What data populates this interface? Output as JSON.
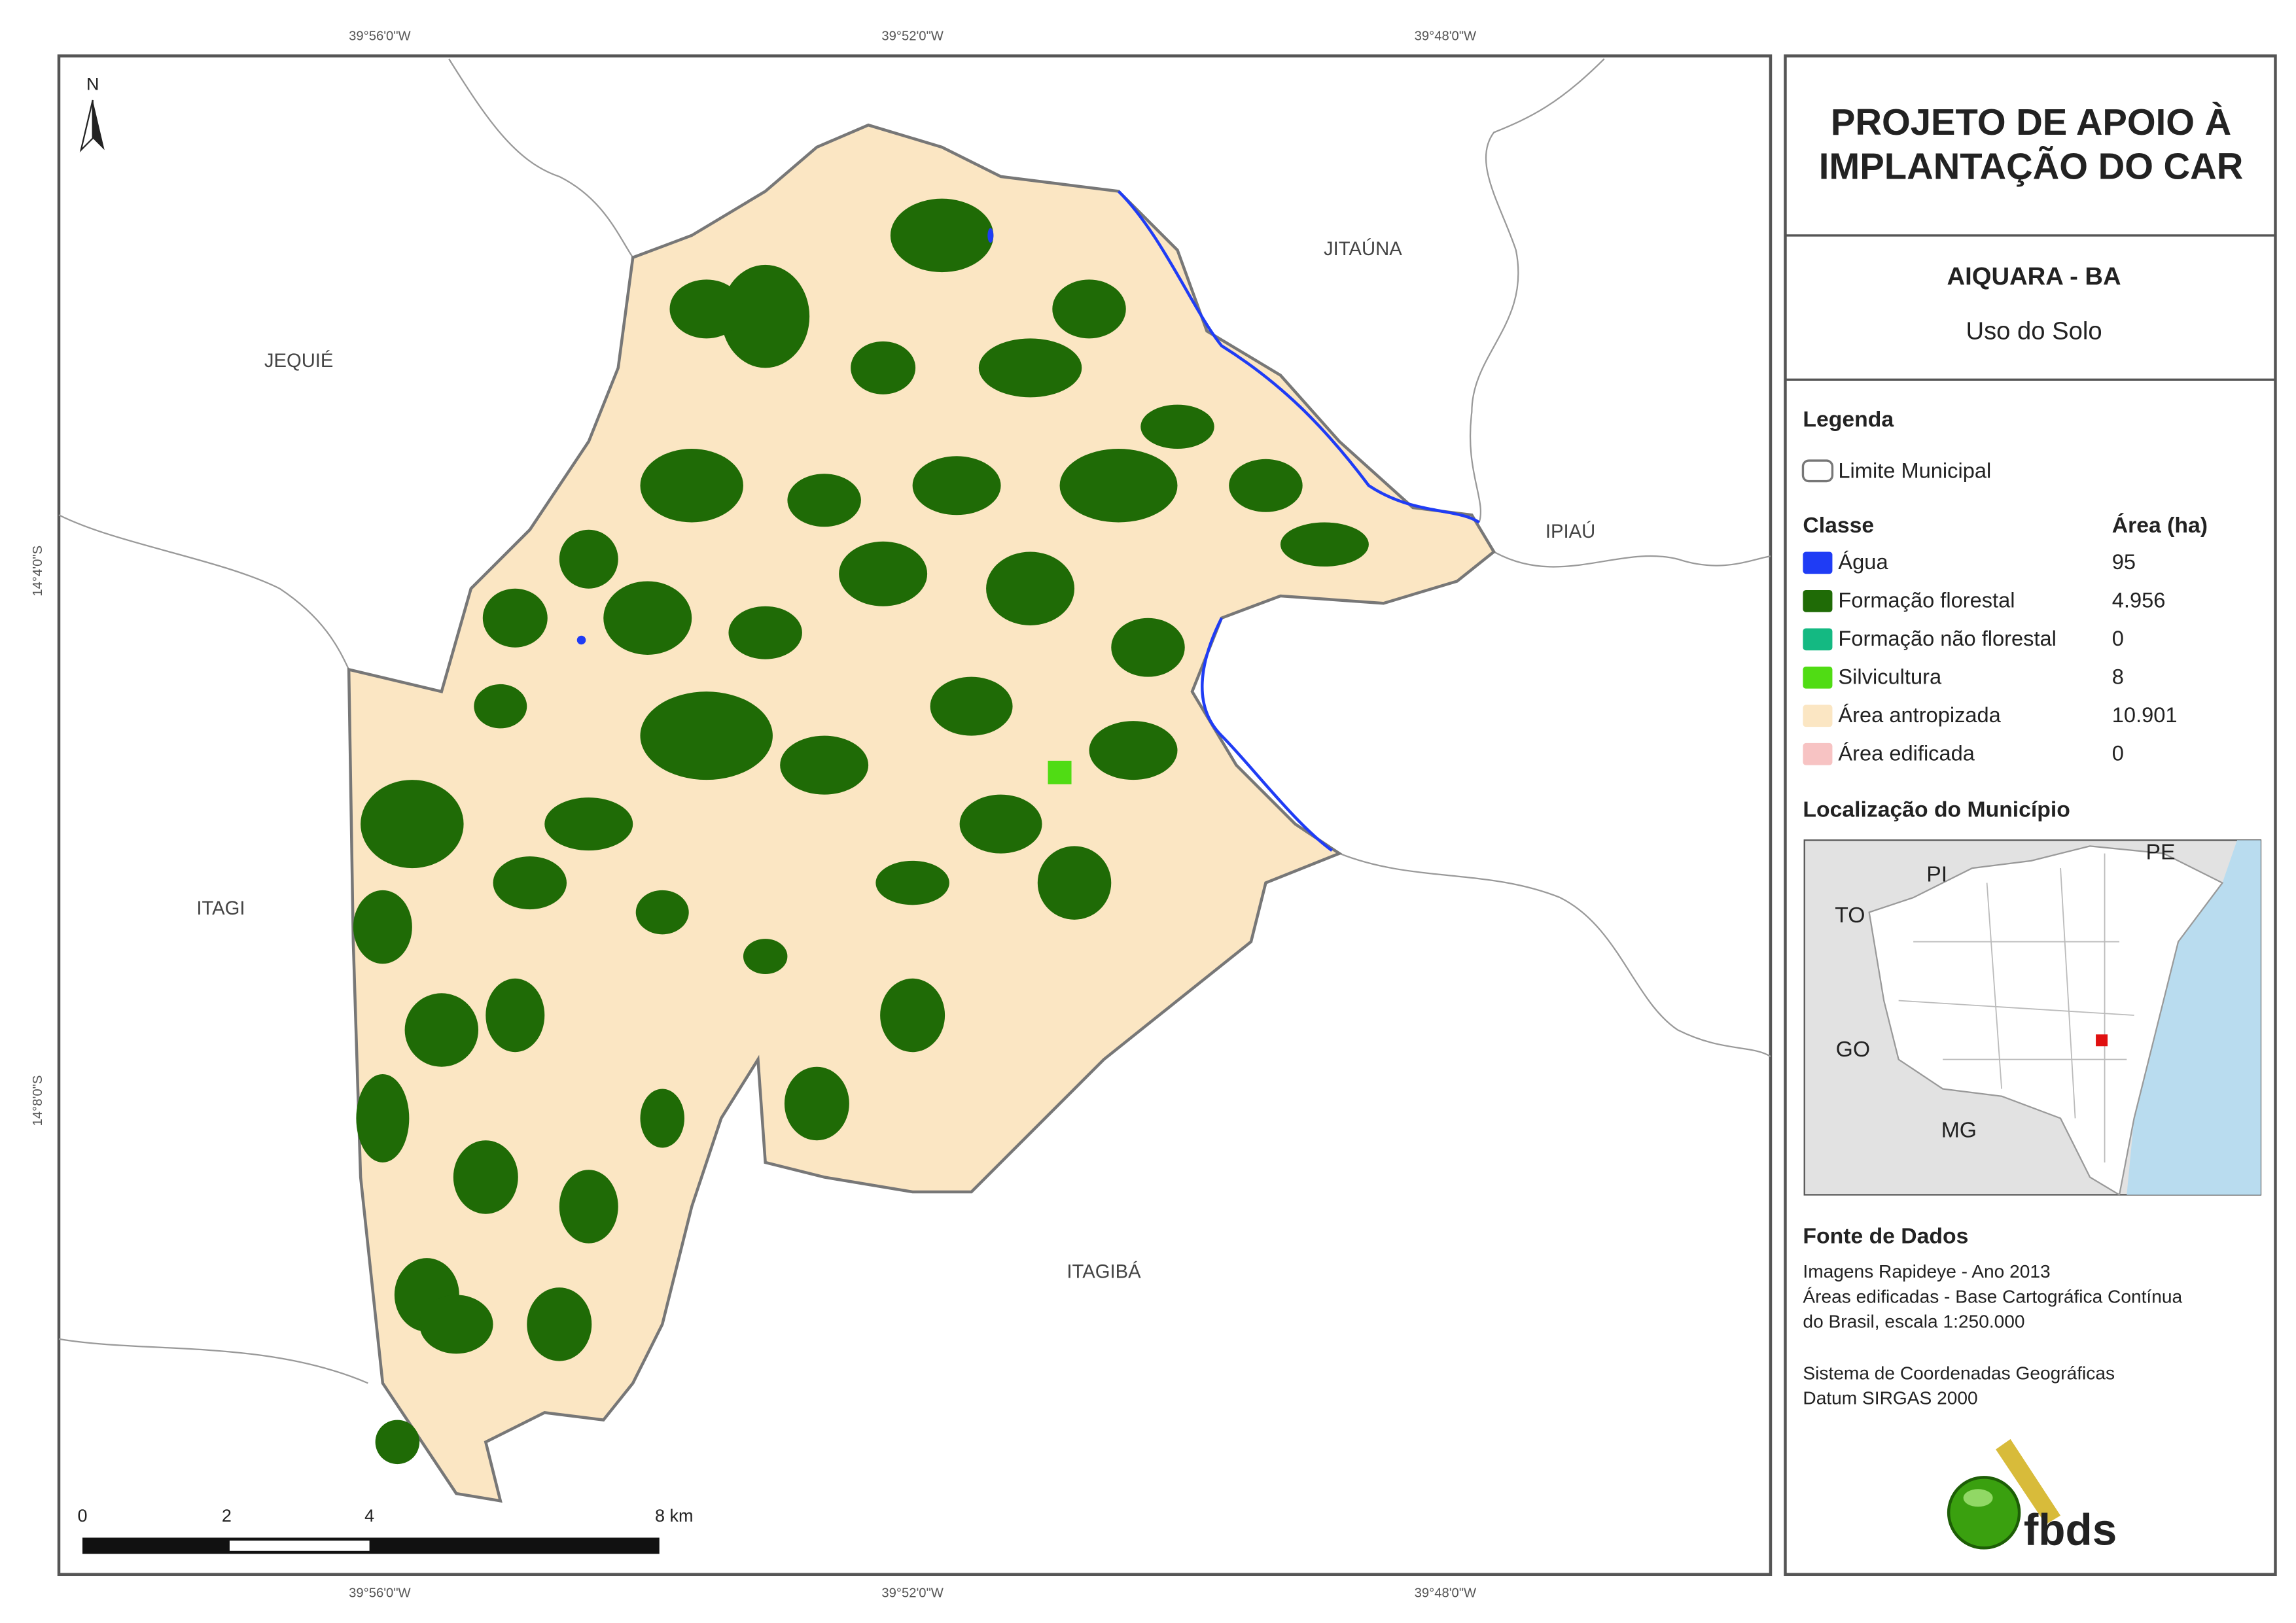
{
  "map": {
    "north": "N",
    "coordinates": {
      "top": [
        "39°56'0\"W",
        "39°52'0\"W",
        "39°48'0\"W"
      ],
      "bottom": [
        "39°56'0\"W",
        "39°52'0\"W",
        "39°48'0\"W"
      ],
      "left": [
        "14°4'0\"S",
        "14°8'0\"S"
      ]
    },
    "neighbors": [
      "JEQUIÉ",
      "JITAÚNA",
      "IPIAÚ",
      "ITAGI",
      "ITAGIBÁ"
    ],
    "scale_bar": [
      "0",
      "2",
      "4",
      "8 km"
    ]
  },
  "panel": {
    "title": [
      "PROJETO DE APOIO À",
      "IMPLANTAÇÃO DO CAR"
    ],
    "municipality": "AIQUARA - BA",
    "subtitle": "Uso do Solo",
    "legend": {
      "heading": "Legenda",
      "boundary": "Limite Municipal",
      "class_header": "Classe",
      "area_header": "Área (ha)",
      "classes": [
        {
          "name": "Água",
          "area": "95",
          "color": "#1f3cf5"
        },
        {
          "name": "Formação florestal",
          "area": "4.956",
          "color": "#1f6b06"
        },
        {
          "name": "Formação não florestal",
          "area": "0",
          "color": "#14b982"
        },
        {
          "name": "Silvicultura",
          "area": "8",
          "color": "#50dc14"
        },
        {
          "name": "Área antropizada",
          "area": "10.901",
          "color": "#fbe6c3"
        },
        {
          "name": "Área edificada",
          "area": "0",
          "color": "#f7c3c3"
        }
      ]
    },
    "location": {
      "heading": "Localização do Município",
      "labels": [
        "PI",
        "PE",
        "TO",
        "GO",
        "MG"
      ]
    },
    "sources": {
      "heading": "Fonte de Dados",
      "lines": [
        "Imagens Rapideye - Ano 2013",
        "Áreas edificadas - Base Cartográfica Contínua",
        "do Brasil, escala 1:250.000",
        "Sistema de Coordenadas Geográficas",
        "Datum SIRGAS 2000"
      ]
    },
    "logo": "fbds"
  }
}
